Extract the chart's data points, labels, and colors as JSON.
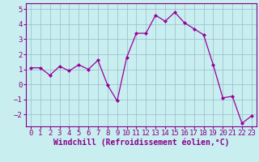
{
  "x": [
    0,
    1,
    2,
    3,
    4,
    5,
    6,
    7,
    8,
    9,
    10,
    11,
    12,
    13,
    14,
    15,
    16,
    17,
    18,
    19,
    20,
    21,
    22,
    23
  ],
  "y": [
    1.1,
    1.1,
    0.6,
    1.2,
    0.9,
    1.3,
    1.0,
    1.6,
    -0.05,
    -1.1,
    1.8,
    3.4,
    3.4,
    4.6,
    4.2,
    4.8,
    4.1,
    3.7,
    3.3,
    1.3,
    -0.9,
    -0.8,
    -2.6,
    -2.1
  ],
  "line_color": "#990099",
  "marker_color": "#990099",
  "bg_color": "#c8eef0",
  "grid_color": "#99bbcc",
  "xlabel": "Windchill (Refroidissement éolien,°C)",
  "ylim": [
    -2.8,
    5.4
  ],
  "xlim": [
    -0.5,
    23.5
  ],
  "yticks": [
    -2,
    -1,
    0,
    1,
    2,
    3,
    4,
    5
  ],
  "xticks": [
    0,
    1,
    2,
    3,
    4,
    5,
    6,
    7,
    8,
    9,
    10,
    11,
    12,
    13,
    14,
    15,
    16,
    17,
    18,
    19,
    20,
    21,
    22,
    23
  ],
  "tick_color": "#880088",
  "xlabel_color": "#880088",
  "spine_color": "#880088",
  "label_fontsize": 7,
  "tick_fontsize": 6.5
}
